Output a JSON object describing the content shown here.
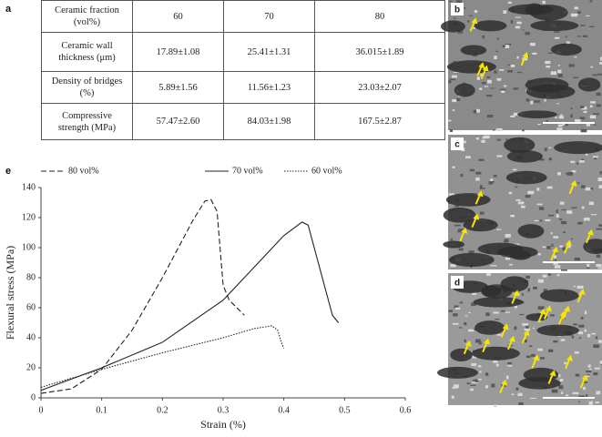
{
  "panels": {
    "a": "a",
    "b": "b",
    "c": "c",
    "d": "d",
    "e": "e"
  },
  "table": {
    "rows": [
      [
        "Ceramic fraction (vol%)",
        "60",
        "70",
        "80"
      ],
      [
        "Ceramic wall thickness (μm)",
        "17.89±1.08",
        "25.41±1.31",
        "36.015±1.89"
      ],
      [
        "Density of bridges (%)",
        "5.89±1.56",
        "11.56±1.23",
        "23.03±2.07"
      ],
      [
        "Compressive strength (MPa)",
        "57.47±2.60",
        "84.03±1.98",
        "167.5±2.87"
      ]
    ]
  },
  "chart_data": {
    "type": "line",
    "x_label": "Strain (%)",
    "y_label": "Flexural stress (MPa)",
    "xlim": [
      0,
      0.6
    ],
    "ylim": [
      0,
      140
    ],
    "xticks": [
      0,
      0.1,
      0.2,
      0.3,
      0.4,
      0.5,
      0.6
    ],
    "yticks": [
      0,
      20,
      40,
      60,
      80,
      100,
      120,
      140
    ],
    "grid": false,
    "series": [
      {
        "name": "80 vol%",
        "color": "#222222",
        "dash": "dashed",
        "x": [
          0,
          0.05,
          0.1,
          0.15,
          0.2,
          0.25,
          0.27,
          0.28,
          0.29,
          0.3,
          0.31,
          0.335
        ],
        "values": [
          3,
          6,
          19,
          45,
          80,
          118,
          131,
          132,
          124,
          75,
          65,
          55
        ]
      },
      {
        "name": "70 vol%",
        "color": "#222222",
        "dash": "solid",
        "x": [
          0,
          0.1,
          0.2,
          0.3,
          0.4,
          0.43,
          0.44,
          0.46,
          0.48,
          0.49
        ],
        "values": [
          5,
          20,
          37,
          65,
          108,
          117,
          115,
          85,
          55,
          50
        ]
      },
      {
        "name": "60 vol%",
        "color": "#222222",
        "dash": "dotted",
        "x": [
          0,
          0.1,
          0.2,
          0.3,
          0.35,
          0.38,
          0.39,
          0.395,
          0.4
        ],
        "values": [
          7,
          19,
          30,
          40,
          46,
          48,
          45,
          38,
          33
        ]
      }
    ]
  }
}
